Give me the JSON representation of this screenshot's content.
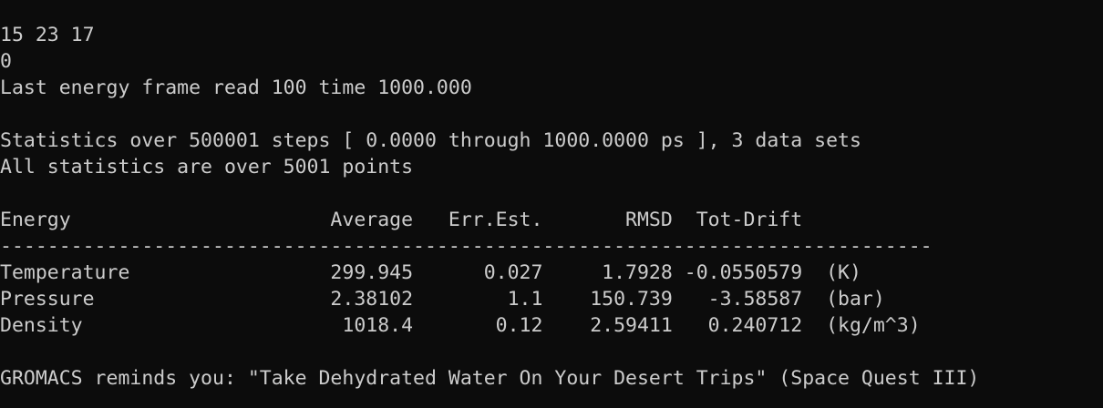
{
  "terminal": {
    "lines": [
      "15 23 17",
      "0",
      "Last energy frame read 100 time 1000.000",
      "",
      "Statistics over 500001 steps [ 0.0000 through 1000.0000 ps ], 3 data sets",
      "All statistics are over 5001 points",
      "",
      "Energy                      Average   Err.Est.       RMSD  Tot-Drift",
      "-------------------------------------------------------------------------------",
      "Temperature                 299.945      0.027     1.7928 -0.0550579  (K)",
      "Pressure                    2.38102        1.1    150.739   -3.58587  (bar)",
      "Density                      1018.4       0.12    2.59411   0.240712  (kg/m^3)",
      "",
      "GROMACS reminds you: \"Take Dehydrated Water On Your Desert Trips\" (Space Quest III)"
    ]
  }
}
